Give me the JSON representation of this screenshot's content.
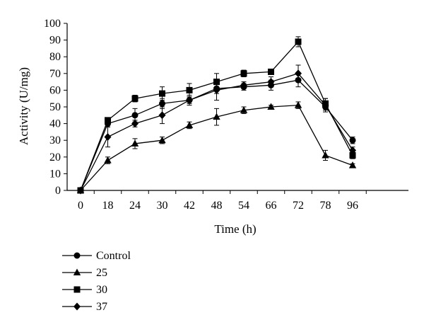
{
  "chart_data": {
    "type": "line",
    "categories": [
      "0",
      "18",
      "24",
      "30",
      "42",
      "48",
      "54",
      "66",
      "72",
      "78",
      "96"
    ],
    "xlabel": "Time (h)",
    "ylabel": "Activity (U/mg)",
    "ylim": [
      0,
      100
    ],
    "yticks": [
      0,
      10,
      20,
      30,
      40,
      50,
      60,
      70,
      80,
      90,
      100
    ],
    "grid": false,
    "legend": "bottom-left",
    "series": [
      {
        "name": "Control",
        "marker": "circle",
        "values": [
          0,
          40,
          45,
          52,
          54,
          61,
          62,
          63,
          66,
          50,
          30
        ],
        "errors": [
          1,
          2,
          4,
          3,
          3,
          3,
          2,
          3,
          4,
          2,
          2
        ]
      },
      {
        "name": "25",
        "marker": "triangle",
        "values": [
          0,
          18,
          28,
          30,
          39,
          44,
          48,
          50,
          51,
          21,
          15
        ],
        "errors": [
          1,
          2,
          3,
          2,
          2,
          5,
          2,
          1,
          2,
          3,
          1
        ]
      },
      {
        "name": "30",
        "marker": "square",
        "values": [
          0,
          42,
          55,
          58,
          60,
          65,
          70,
          71,
          89,
          52,
          21
        ],
        "errors": [
          1,
          1,
          2,
          4,
          4,
          5,
          2,
          1,
          3,
          3,
          2
        ]
      },
      {
        "name": "37",
        "marker": "diamond",
        "values": [
          0,
          32,
          40,
          45,
          54,
          60,
          63,
          65,
          70,
          51,
          24
        ],
        "errors": [
          1,
          6,
          2,
          5,
          2,
          6,
          2,
          3,
          5,
          4,
          2
        ]
      }
    ]
  }
}
